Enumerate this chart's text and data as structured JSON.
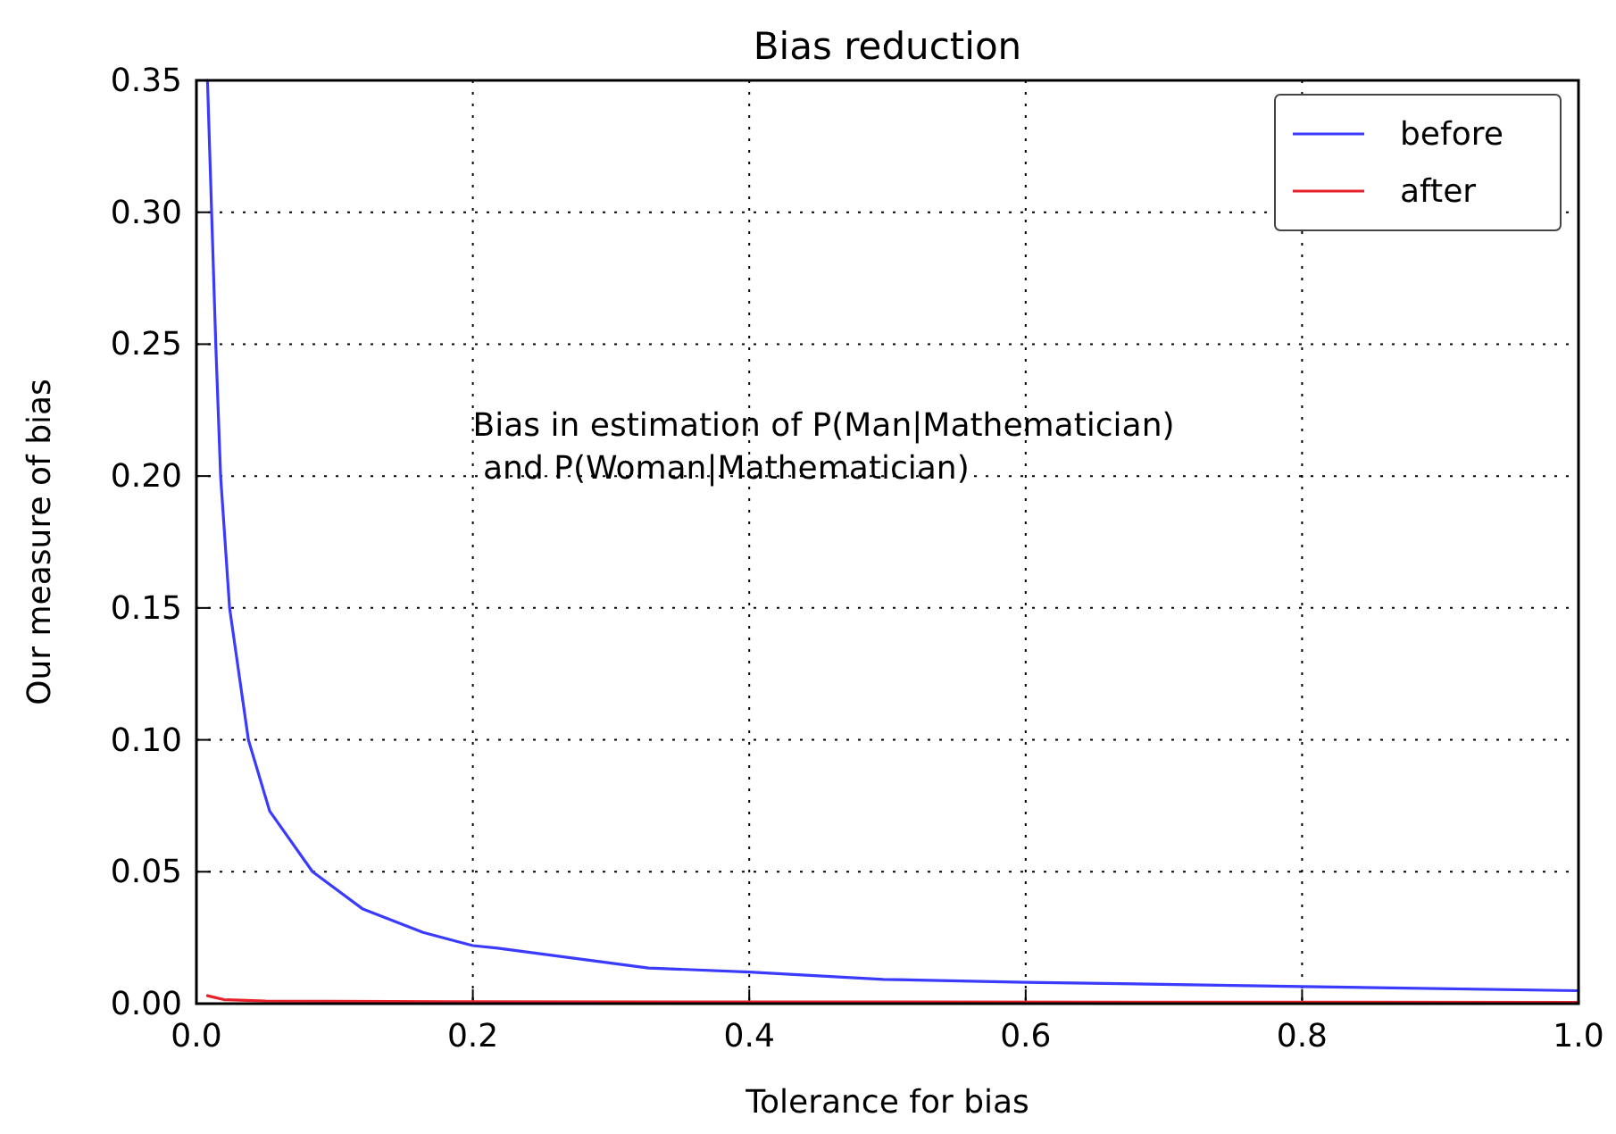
{
  "chart_data": {
    "type": "line",
    "title": "Bias reduction",
    "xlabel": "Tolerance for bias",
    "ylabel": "Our measure of bias",
    "annotations": [
      "Bias in estimation of P(Man|Mathematician)\n and P(Woman|Mathematician)"
    ],
    "xlim": [
      0,
      1
    ],
    "ylim": [
      0,
      0.35
    ],
    "xticks": [
      {
        "value": 0,
        "label": "0.0"
      },
      {
        "value": 0.2,
        "label": "0.2"
      },
      {
        "value": 0.4,
        "label": "0.4"
      },
      {
        "value": 0.6,
        "label": "0.6"
      },
      {
        "value": 0.8,
        "label": "0.8"
      },
      {
        "value": 1,
        "label": "1.0"
      }
    ],
    "yticks": [
      {
        "value": 0,
        "label": "0.00"
      },
      {
        "value": 0.05,
        "label": "0.05"
      },
      {
        "value": 0.1,
        "label": "0.10"
      },
      {
        "value": 0.15,
        "label": "0.15"
      },
      {
        "value": 0.2,
        "label": "0.20"
      },
      {
        "value": 0.25,
        "label": "0.25"
      },
      {
        "value": 0.3,
        "label": "0.30"
      },
      {
        "value": 0.35,
        "label": "0.35"
      }
    ],
    "grid": true,
    "legend": "top right",
    "line_style": "solid",
    "marker": "none",
    "series": [
      {
        "name": "before",
        "color": "#3b3bff",
        "x": [
          0.008,
          0.011,
          0.014,
          0.0175,
          0.024,
          0.0376,
          0.053,
          0.084,
          0.12,
          0.164,
          0.2,
          0.218,
          0.327,
          0.4,
          0.497,
          0.6,
          0.8,
          1.0
        ],
        "values": [
          0.35,
          0.3,
          0.25,
          0.2,
          0.15,
          0.1,
          0.073,
          0.05,
          0.036,
          0.027,
          0.022,
          0.021,
          0.0135,
          0.012,
          0.0092,
          0.0081,
          0.0065,
          0.0049
        ]
      },
      {
        "name": "after",
        "color": "#e8202a",
        "x": [
          0.008,
          0.02,
          0.05,
          0.2,
          1.0
        ],
        "values": [
          0.003,
          0.0015,
          0.001,
          0.0007,
          0.0005
        ]
      }
    ]
  }
}
